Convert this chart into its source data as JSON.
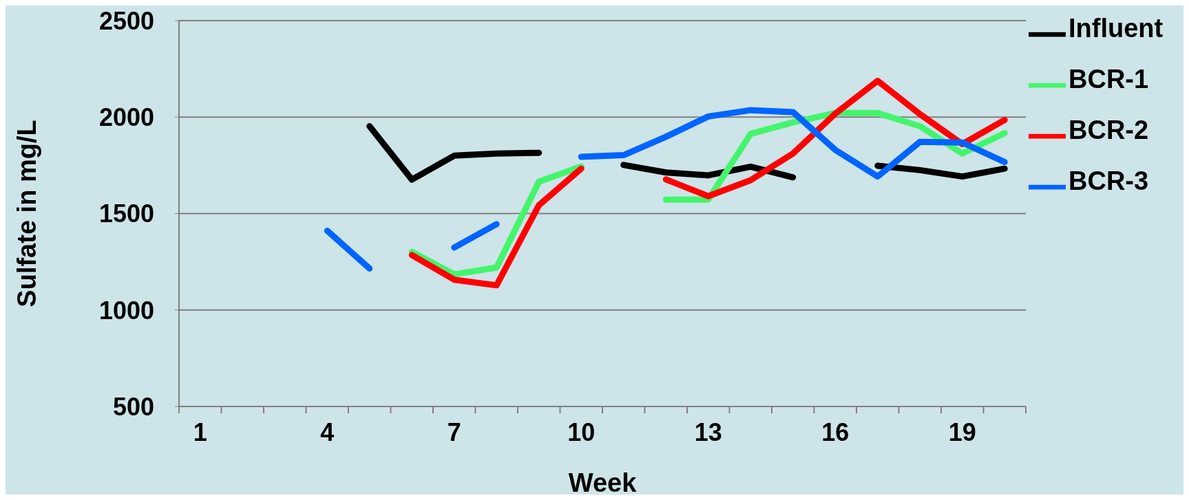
{
  "chart_data": {
    "type": "line",
    "xlabel": "Week",
    "ylabel": "Sulfate in mg/L",
    "categories": [
      "1",
      null,
      null,
      "4",
      null,
      null,
      "7",
      null,
      null,
      "10",
      null,
      null,
      "13",
      null,
      null,
      "16",
      null,
      null,
      "19",
      null
    ],
    "series": [
      {
        "name": "Influent",
        "color": "#000000",
        "values": [
          null,
          null,
          null,
          null,
          1953,
          1676,
          1800,
          1811,
          1815,
          null,
          1752,
          1713,
          1698,
          1743,
          1688,
          null,
          1748,
          1725,
          1692,
          1733
        ]
      },
      {
        "name": "BCR-1",
        "color": "#44f46c",
        "values": [
          null,
          null,
          null,
          null,
          null,
          1302,
          1185,
          1220,
          1665,
          1744,
          null,
          1572,
          1572,
          1913,
          1973,
          2021,
          2021,
          1953,
          1811,
          1917
        ]
      },
      {
        "name": "BCR-2",
        "color": "#ff0000",
        "values": [
          null,
          null,
          null,
          null,
          null,
          1285,
          1157,
          1128,
          1543,
          1733,
          null,
          1677,
          1590,
          1673,
          1811,
          2018,
          2188,
          2015,
          1860,
          1985
        ]
      },
      {
        "name": "BCR-3",
        "color": "#0064ff",
        "values": [
          null,
          null,
          null,
          1411,
          1215,
          null,
          1324,
          1445,
          null,
          1794,
          1803,
          1898,
          2003,
          2036,
          2026,
          1830,
          1692,
          1872,
          1868,
          1767
        ]
      }
    ],
    "ylim": [
      500,
      2500
    ],
    "yticks": [
      500,
      1000,
      1500,
      2000,
      2500
    ],
    "grid": "y",
    "legend": "top right",
    "line_style": "solid"
  }
}
